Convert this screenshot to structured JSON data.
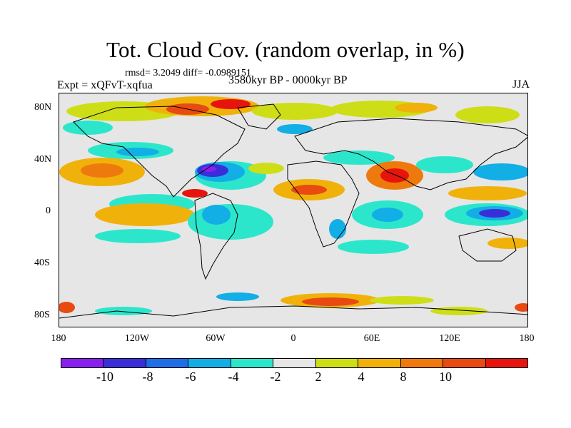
{
  "title": "Tot. Cloud Cov. (random overlap, in %)",
  "stats": "rmsd= 3.2049 diff= -0.0989151",
  "experiment": "Expt = xQFvT-xqfua",
  "period": "3580kyr BP - 0000kyr BP",
  "season": "JJA",
  "lat_ticks": [
    "80N",
    "40N",
    "0",
    "40S",
    "80S"
  ],
  "lon_ticks": [
    "180",
    "120W",
    "60W",
    "0",
    "60E",
    "120E",
    "180"
  ],
  "colorbar": {
    "colors": [
      "#8a1ef0",
      "#3a2ed8",
      "#1e6ee6",
      "#12aee6",
      "#2ce6cc",
      "#e6e6e6",
      "#cede16",
      "#f0b20a",
      "#ee7a0e",
      "#e84a12",
      "#e6140c"
    ],
    "labels": [
      "-10",
      "-8",
      "-6",
      "-4",
      "-2",
      "2",
      "4",
      "8",
      "10"
    ]
  }
}
